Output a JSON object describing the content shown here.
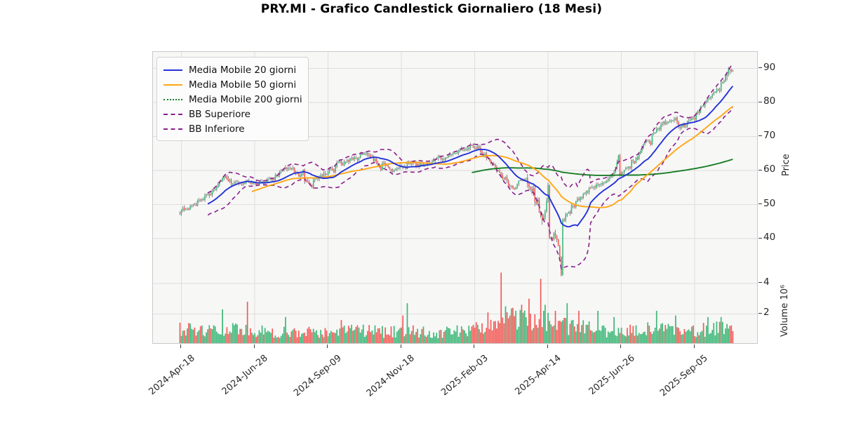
{
  "title": "PRY.MI - Grafico Candlestick Giornaliero (18 Mesi)",
  "axes": {
    "price_label": "Price",
    "volume_label": "Volume  10⁶",
    "price_ticks": [
      90,
      80,
      70,
      60,
      50,
      40
    ],
    "volume_ticks_millions": [
      4,
      2
    ],
    "date_ticks": [
      {
        "day": 1,
        "label": "2024-Apr-18"
      },
      {
        "day": 51,
        "label": "2024-Jun-28"
      },
      {
        "day": 101,
        "label": "2024-Sep-09"
      },
      {
        "day": 151,
        "label": "2024-Nov-18"
      },
      {
        "day": 201,
        "label": "2025-Feb-03"
      },
      {
        "day": 251,
        "label": "2025-Apr-14"
      },
      {
        "day": 301,
        "label": "2025-Jun-26"
      },
      {
        "day": 351,
        "label": "2025-Sep-05"
      }
    ]
  },
  "chart_data": {
    "type": "candlestick",
    "subpanels": [
      "price",
      "volume"
    ],
    "days": 378,
    "title": "PRY.MI - Grafico Candlestick Giornaliero (18 Mesi)",
    "price_axis": {
      "label": "Price",
      "ticks": [
        40,
        50,
        60,
        70,
        80,
        90
      ],
      "approx_range": [
        36,
        95
      ]
    },
    "volume_axis": {
      "label": "Volume 10⁶",
      "ticks_millions": [
        2,
        4
      ],
      "approx_max_millions": 5
    },
    "x_axis": {
      "tick_days": [
        1,
        51,
        101,
        151,
        201,
        251,
        301,
        351
      ],
      "tick_labels": [
        "2024-Apr-18",
        "2024-Jun-28",
        "2024-Sep-09",
        "2024-Nov-18",
        "2025-Feb-03",
        "2025-Apr-14",
        "2025-Jun-26",
        "2025-Sep-05"
      ]
    },
    "price_keypoints": [
      [
        0,
        48.0
      ],
      [
        8,
        49.5
      ],
      [
        15,
        51.5
      ],
      [
        22,
        54.0
      ],
      [
        28,
        57.0
      ],
      [
        31,
        58.3
      ],
      [
        36,
        55.8
      ],
      [
        43,
        56.5
      ],
      [
        51,
        56.2
      ],
      [
        60,
        57.0
      ],
      [
        70,
        60.0
      ],
      [
        74,
        61.0
      ],
      [
        80,
        59.0
      ],
      [
        84,
        57.5
      ],
      [
        90,
        56.5
      ],
      [
        96,
        58.0
      ],
      [
        101,
        59.5
      ],
      [
        106,
        61.5
      ],
      [
        112,
        63.0
      ],
      [
        120,
        63.5
      ],
      [
        127,
        65.2
      ],
      [
        133,
        63.0
      ],
      [
        140,
        61.5
      ],
      [
        146,
        60.0
      ],
      [
        151,
        61.0
      ],
      [
        158,
        62.0
      ],
      [
        165,
        61.5
      ],
      [
        172,
        62.5
      ],
      [
        180,
        63.5
      ],
      [
        186,
        64.5
      ],
      [
        193,
        66.0
      ],
      [
        199,
        67.5
      ],
      [
        203,
        66.8
      ],
      [
        208,
        64.5
      ],
      [
        213,
        62.0
      ],
      [
        219,
        58.5
      ],
      [
        224,
        56.0
      ],
      [
        228,
        55.0
      ],
      [
        232,
        57.0
      ],
      [
        236,
        57.5
      ],
      [
        240,
        54.0
      ],
      [
        244,
        49.0
      ],
      [
        247,
        45.0
      ],
      [
        250,
        42.0
      ],
      [
        253,
        39.8
      ],
      [
        256,
        42.5
      ],
      [
        259,
        44.5
      ],
      [
        263,
        46.5
      ],
      [
        267,
        49.5
      ],
      [
        271,
        51.5
      ],
      [
        276,
        53.5
      ],
      [
        282,
        55.0
      ],
      [
        288,
        56.0
      ],
      [
        295,
        57.0
      ],
      [
        301,
        59.0
      ],
      [
        306,
        61.5
      ],
      [
        312,
        65.0
      ],
      [
        318,
        68.5
      ],
      [
        323,
        71.0
      ],
      [
        328,
        73.0
      ],
      [
        333,
        74.0
      ],
      [
        337,
        74.5
      ],
      [
        341,
        73.0
      ],
      [
        345,
        73.5
      ],
      [
        349,
        75.5
      ],
      [
        353,
        77.5
      ],
      [
        357,
        79.5
      ],
      [
        361,
        81.0
      ],
      [
        365,
        83.0
      ],
      [
        369,
        85.5
      ],
      [
        372,
        87.5
      ],
      [
        375,
        90.5
      ],
      [
        377,
        89.0
      ]
    ],
    "volume_keypoints_millions": [
      [
        0,
        0.95
      ],
      [
        20,
        0.8
      ],
      [
        40,
        0.9
      ],
      [
        60,
        0.75
      ],
      [
        80,
        0.75
      ],
      [
        101,
        0.75
      ],
      [
        120,
        0.85
      ],
      [
        140,
        0.75
      ],
      [
        155,
        0.9
      ],
      [
        170,
        0.7
      ],
      [
        190,
        0.8
      ],
      [
        205,
        1.0
      ],
      [
        215,
        1.3
      ],
      [
        225,
        1.5
      ],
      [
        240,
        1.5
      ],
      [
        252,
        1.35
      ],
      [
        262,
        1.15
      ],
      [
        275,
        1.0
      ],
      [
        290,
        0.8
      ],
      [
        305,
        0.85
      ],
      [
        320,
        0.95
      ],
      [
        335,
        0.85
      ],
      [
        350,
        0.85
      ],
      [
        365,
        0.95
      ],
      [
        377,
        1.0
      ]
    ],
    "volume_spikes_millions": [
      [
        29,
        2.3,
        "up"
      ],
      [
        46,
        2.8,
        "down"
      ],
      [
        72,
        1.8,
        "up"
      ],
      [
        110,
        1.6,
        "down"
      ],
      [
        152,
        1.9,
        "down"
      ],
      [
        155,
        2.7,
        "up"
      ],
      [
        210,
        2.1,
        "down"
      ],
      [
        219,
        4.7,
        "down"
      ],
      [
        222,
        2.5,
        "up"
      ],
      [
        227,
        2.4,
        "down"
      ],
      [
        233,
        2.6,
        "down"
      ],
      [
        238,
        3.0,
        "down"
      ],
      [
        246,
        4.3,
        "down"
      ],
      [
        249,
        2.6,
        "up"
      ],
      [
        256,
        2.2,
        "down"
      ],
      [
        264,
        2.7,
        "up"
      ],
      [
        272,
        2.2,
        "down"
      ],
      [
        285,
        2.2,
        "up"
      ],
      [
        296,
        1.8,
        "up"
      ],
      [
        325,
        2.2,
        "up"
      ],
      [
        338,
        1.9,
        "up"
      ],
      [
        360,
        1.8,
        "up"
      ],
      [
        369,
        1.8,
        "up"
      ]
    ],
    "indicators": [
      {
        "label": "Media Mobile 20 giorni",
        "type": "sma",
        "window": 20,
        "color": "#2432D9",
        "line": "solid",
        "legend_line": "solid"
      },
      {
        "label": "Media Mobile 50 giorni",
        "type": "sma",
        "window": 50,
        "color": "#FFA714",
        "line": "solid",
        "legend_line": "solid"
      },
      {
        "label": "Media Mobile 200 giorni",
        "type": "sma",
        "window": 200,
        "color": "#1A7D26",
        "line": "solid",
        "legend_line": "dotted"
      },
      {
        "label": "BB Superiore",
        "type": "bb_upper",
        "window": 20,
        "mult": 2,
        "color": "#8B1E8C",
        "line": "dashed",
        "legend_line": "dashed"
      },
      {
        "label": "BB Inferiore",
        "type": "bb_lower",
        "window": 20,
        "mult": 2,
        "color": "#8B1E8C",
        "line": "dashed",
        "legend_line": "dashed"
      }
    ],
    "colors": {
      "candle_up": "#3CB878",
      "candle_down": "#F25B57",
      "wick": "#4d4d4d",
      "grid": "#dedede",
      "plot_background": "#f7f7f6",
      "figure_background": "#ffffff"
    }
  }
}
